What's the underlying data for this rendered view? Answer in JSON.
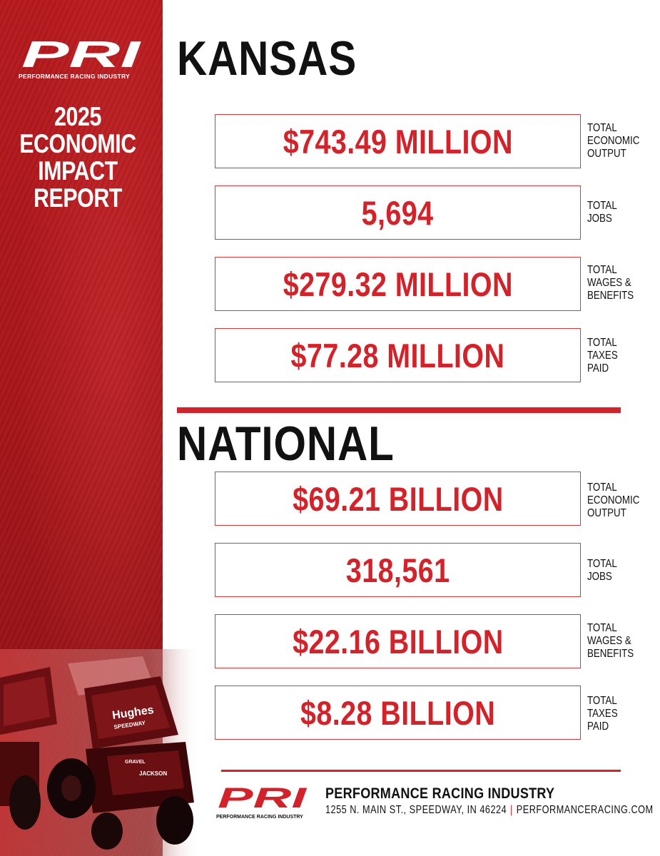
{
  "brand": {
    "logo_text": "PRI",
    "logo_subtitle": "PERFORMANCE RACING INDUSTRY",
    "red": "#d2232a"
  },
  "report_title": [
    "2025",
    "ECONOMIC",
    "IMPACT",
    "REPORT"
  ],
  "kansas": {
    "title": "KANSAS",
    "stats": [
      {
        "value": "$743.49 MILLION",
        "label": [
          "TOTAL",
          "ECONOMIC",
          "OUTPUT"
        ]
      },
      {
        "value": "5,694",
        "label": [
          "TOTAL",
          "JOBS"
        ]
      },
      {
        "value": "$279.32 MILLION",
        "label": [
          "TOTAL",
          "WAGES &",
          "BENEFITS"
        ]
      },
      {
        "value": "$77.28 MILLION",
        "label": [
          "TOTAL",
          "TAXES",
          "PAID"
        ]
      }
    ]
  },
  "national": {
    "title": "NATIONAL",
    "stats": [
      {
        "value": "$69.21 BILLION",
        "label": [
          "TOTAL",
          "ECONOMIC",
          "OUTPUT"
        ]
      },
      {
        "value": "318,561",
        "label": [
          "TOTAL",
          "JOBS"
        ]
      },
      {
        "value": "$22.16 BILLION",
        "label": [
          "TOTAL",
          "WAGES &",
          "BENEFITS"
        ]
      },
      {
        "value": "$8.28 BILLION",
        "label": [
          "TOTAL",
          "TAXES",
          "PAID"
        ]
      }
    ]
  },
  "footer": {
    "logo_subtitle": "PERFORMANCE RACING INDUSTRY",
    "organization": "PERFORMANCE RACING INDUSTRY",
    "address": "1255 N. MAIN ST., SPEEDWAY, IN 46224",
    "separator": "|",
    "website": "PERFORMANCERACING.COM"
  },
  "photo": {
    "car_text": [
      "Hughes",
      "SPEEDWAY",
      "JACKSON",
      "GRAVEL"
    ]
  }
}
